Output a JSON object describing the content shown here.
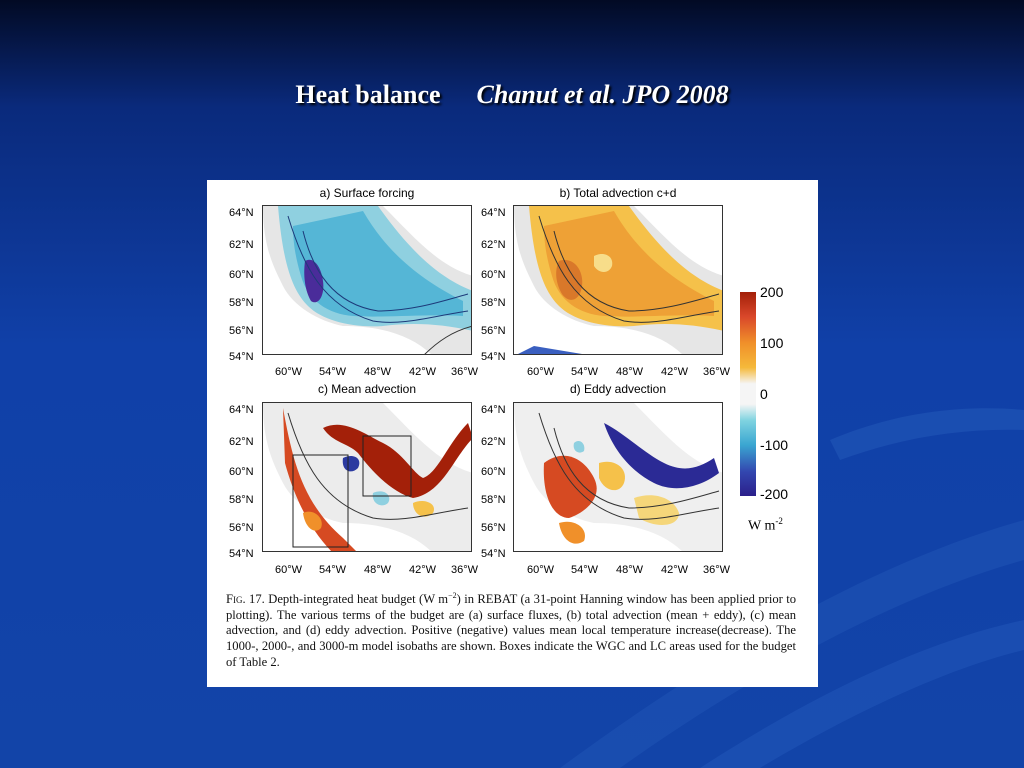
{
  "slide": {
    "title": "Heat balance",
    "citation": "Chanut et al. JPO 2008"
  },
  "figure": {
    "panels": [
      {
        "title": "a) Surface forcing"
      },
      {
        "title": "b) Total advection c+d"
      },
      {
        "title": "c) Mean advection"
      },
      {
        "title": "d) Eddy advection"
      }
    ],
    "lat_labels": [
      "64°N",
      "62°N",
      "60°N",
      "58°N",
      "56°N",
      "54°N"
    ],
    "lon_labels": [
      "60°W",
      "54°W",
      "48°W",
      "42°W",
      "36°W"
    ],
    "colorbar": {
      "ticks": [
        "200",
        "100",
        "0",
        "-100",
        "-200"
      ],
      "unit": "W m",
      "unit_sup": "-2"
    },
    "caption": {
      "fig_label": "Fig. 17.",
      "text_pre": " Depth-integrated heat budget (W m",
      "text_sup": "−2",
      "text_post": ") in REBAT (a 31-point Hanning window has been applied prior to plotting). The various terms of the budget are (a) surface fluxes, (b) total advection (mean + eddy), (c) mean advection, and (d) eddy advection. Positive (negative) values mean local temperature increase(decrease). The 1000-, 2000-, and 3000-m model isobaths are shown. Boxes indicate the WGC and LC areas used for the budget of Table 2."
    }
  }
}
